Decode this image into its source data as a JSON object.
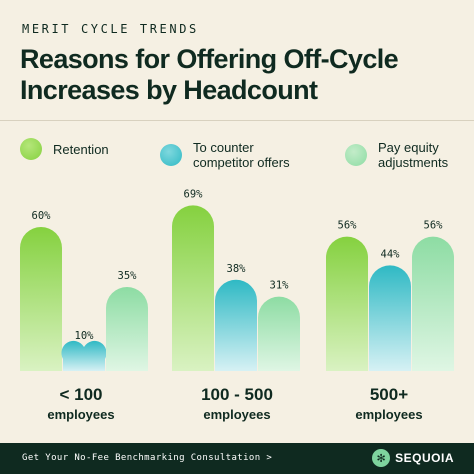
{
  "header": {
    "eyebrow": "MERIT CYCLE TRENDS",
    "title": "Reasons for Offering Off-Cycle Increases by Headcount"
  },
  "legend": [
    {
      "label": "Retention",
      "color": "#8fd44a"
    },
    {
      "label": "To counter competitor offers",
      "color": "#3fbfc7"
    },
    {
      "label": "Pay equity adjustments",
      "color": "#9fe0a8"
    }
  ],
  "groups": [
    {
      "line1": "< 100",
      "line2": "employees"
    },
    {
      "line1": "100 - 500",
      "line2": "employees"
    },
    {
      "line1": "500+",
      "line2": "employees"
    }
  ],
  "chart_data": {
    "type": "bar",
    "categories": [
      "< 100 employees",
      "100 - 500 employees",
      "500+ employees"
    ],
    "series": [
      {
        "name": "Retention",
        "values": [
          60,
          69,
          56
        ]
      },
      {
        "name": "To counter competitor offers",
        "values": [
          10,
          38,
          44
        ]
      },
      {
        "name": "Pay equity adjustments",
        "values": [
          35,
          31,
          56
        ]
      }
    ],
    "value_labels": [
      [
        "60%",
        "69%",
        "56%"
      ],
      [
        "10%",
        "38%",
        "44%"
      ],
      [
        "35%",
        "31%",
        "56%"
      ]
    ],
    "ylim": [
      0,
      100
    ],
    "grid": false,
    "legend_position": "top",
    "colors": {
      "Retention": [
        "#85d13f",
        "#d9f2c2"
      ],
      "To counter competitor offers": [
        "#2fb9c4",
        "#d6f1f4"
      ],
      "Pay equity adjustments": [
        "#8ddca3",
        "#dff6e4"
      ]
    }
  },
  "footer": {
    "cta": "Get Your No-Fee Benchmarking Consultation >",
    "brand": "SEQUOIA"
  }
}
